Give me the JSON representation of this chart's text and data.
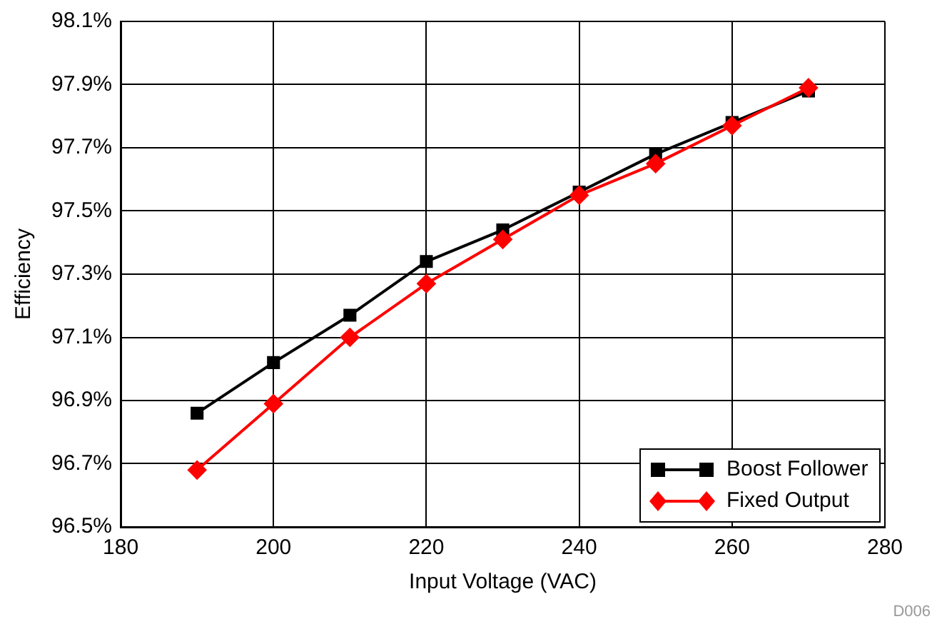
{
  "chart_data": {
    "type": "line",
    "xlabel": "Input Voltage (VAC)",
    "ylabel": "Efficiency",
    "x": [
      190,
      200,
      210,
      220,
      230,
      240,
      250,
      260,
      270
    ],
    "series": [
      {
        "name": "Boost Follower",
        "color": "#000000",
        "marker": "square",
        "values": [
          96.86,
          97.02,
          97.17,
          97.34,
          97.44,
          97.56,
          97.68,
          97.78,
          97.88
        ]
      },
      {
        "name": "Fixed Output",
        "color": "#ff0000",
        "marker": "diamond",
        "values": [
          96.68,
          96.89,
          97.1,
          97.27,
          97.41,
          97.55,
          97.65,
          97.77,
          97.89
        ]
      }
    ],
    "xlim": [
      180,
      280
    ],
    "xticks": [
      180,
      200,
      220,
      240,
      260,
      280
    ],
    "ylim": [
      96.5,
      98.1
    ],
    "yticks": [
      {
        "value": 96.5,
        "label": "96.5%"
      },
      {
        "value": 96.7,
        "label": "96.7%"
      },
      {
        "value": 96.9,
        "label": "96.9%"
      },
      {
        "value": 97.1,
        "label": "97.1%"
      },
      {
        "value": 97.3,
        "label": "97.3%"
      },
      {
        "value": 97.5,
        "label": "97.5%"
      },
      {
        "value": 97.7,
        "label": "97.7%"
      },
      {
        "value": 97.9,
        "label": "97.9%"
      },
      {
        "value": 98.1,
        "label": "98.1%"
      }
    ],
    "grid": true,
    "legend": "bottom right",
    "line_style": "solid",
    "annotations": [
      "D006"
    ]
  }
}
